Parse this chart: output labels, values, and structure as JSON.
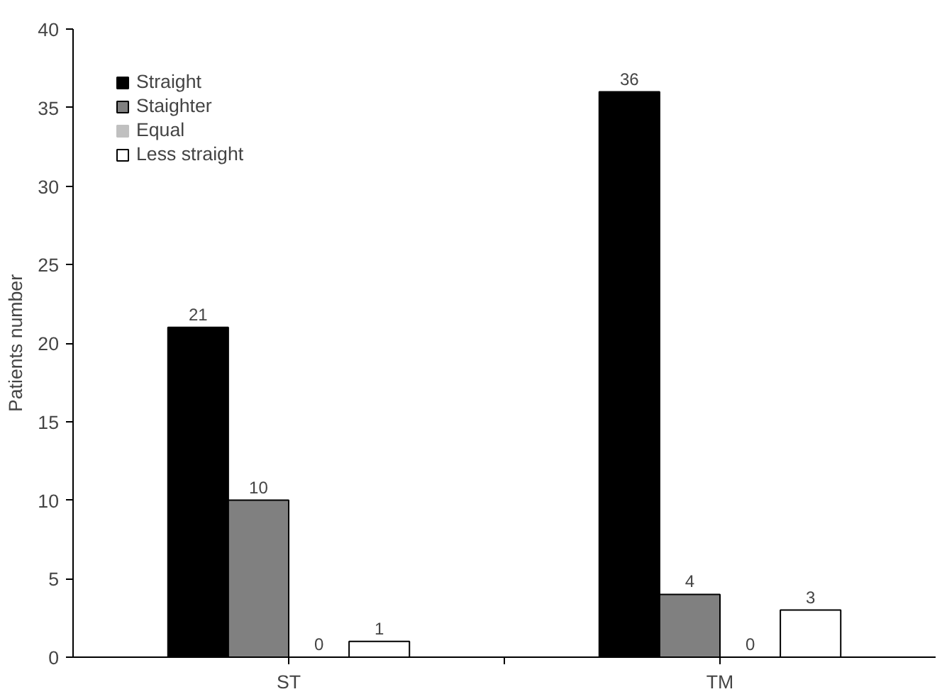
{
  "chart_data": {
    "type": "bar",
    "ylabel": "Patients number",
    "categories": [
      "ST",
      "TM"
    ],
    "series": [
      {
        "name": "Straight",
        "color": "#000000",
        "values": [
          21,
          36
        ]
      },
      {
        "name": "Staighter",
        "color": "#808080",
        "values": [
          10,
          4
        ]
      },
      {
        "name": "Equal",
        "color": "#c0c0c0",
        "values": [
          0,
          0
        ]
      },
      {
        "name": "Less straight",
        "color": "#ffffff",
        "values": [
          1,
          3
        ]
      }
    ],
    "ylim": [
      0,
      40
    ],
    "yticks": [
      0,
      5,
      10,
      15,
      20,
      25,
      30,
      35,
      40
    ],
    "data_labels": true,
    "legend": "top left",
    "grid": false
  }
}
